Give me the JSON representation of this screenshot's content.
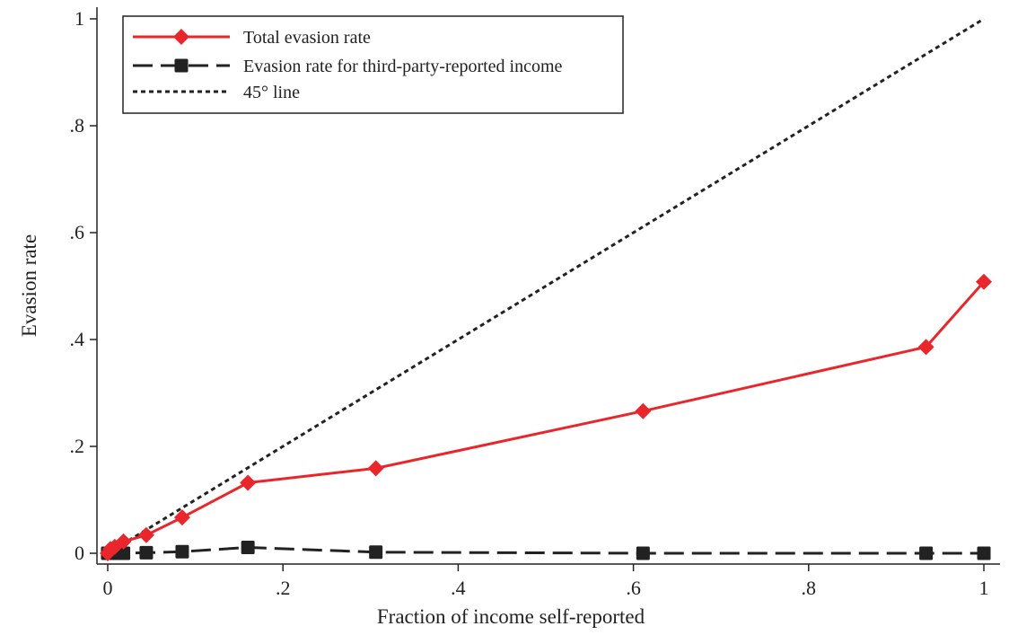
{
  "chart_data": {
    "type": "line",
    "xlabel": "Fraction of income self-reported",
    "ylabel": "Evasion rate",
    "xlim": [
      0,
      1
    ],
    "ylim": [
      0,
      1
    ],
    "x_ticks": [
      {
        "value": 0,
        "label": "0"
      },
      {
        "value": 0.2,
        "label": ".2"
      },
      {
        "value": 0.4,
        "label": ".4"
      },
      {
        "value": 0.6,
        "label": ".6"
      },
      {
        "value": 0.8,
        "label": ".8"
      },
      {
        "value": 1,
        "label": "1"
      }
    ],
    "y_ticks": [
      {
        "value": 0,
        "label": "0"
      },
      {
        "value": 0.2,
        "label": ".2"
      },
      {
        "value": 0.4,
        "label": ".4"
      },
      {
        "value": 0.6,
        "label": ".6"
      },
      {
        "value": 0.8,
        "label": ".8"
      },
      {
        "value": 1,
        "label": "1"
      }
    ],
    "grid": false,
    "legend_position": "top-left",
    "series": [
      {
        "name": "Total evasion rate",
        "style": "solid",
        "marker": "diamond",
        "color": "#e8262b",
        "points": [
          {
            "x": 0.0,
            "y": 0.0
          },
          {
            "x": 0.003,
            "y": 0.008
          },
          {
            "x": 0.008,
            "y": 0.012
          },
          {
            "x": 0.018,
            "y": 0.022
          },
          {
            "x": 0.044,
            "y": 0.034
          },
          {
            "x": 0.085,
            "y": 0.067
          },
          {
            "x": 0.16,
            "y": 0.132
          },
          {
            "x": 0.306,
            "y": 0.159
          },
          {
            "x": 0.611,
            "y": 0.266
          },
          {
            "x": 0.934,
            "y": 0.386
          },
          {
            "x": 1.0,
            "y": 0.508
          }
        ]
      },
      {
        "name": "Evasion rate for third-party-reported income",
        "style": "dashed",
        "marker": "square",
        "color": "#222222",
        "points": [
          {
            "x": 0.0,
            "y": 0.0
          },
          {
            "x": 0.003,
            "y": 0.0
          },
          {
            "x": 0.008,
            "y": 0.0
          },
          {
            "x": 0.018,
            "y": 0.0
          },
          {
            "x": 0.044,
            "y": 0.001
          },
          {
            "x": 0.085,
            "y": 0.003
          },
          {
            "x": 0.16,
            "y": 0.011
          },
          {
            "x": 0.306,
            "y": 0.002
          },
          {
            "x": 0.611,
            "y": 0.0
          },
          {
            "x": 0.934,
            "y": 0.0
          },
          {
            "x": 1.0,
            "y": 0.0
          }
        ]
      },
      {
        "name": "45° line",
        "style": "dotted",
        "marker": "none",
        "color": "#222222",
        "points": [
          {
            "x": 0,
            "y": 0
          },
          {
            "x": 1,
            "y": 1
          }
        ]
      }
    ]
  }
}
